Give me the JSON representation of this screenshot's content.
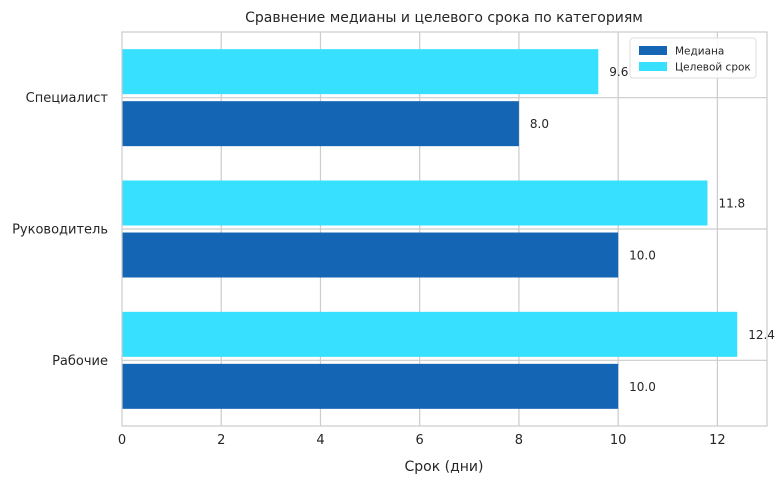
{
  "chart_data": {
    "type": "bar",
    "orientation": "horizontal",
    "title": "Сравнение медианы и целевого срока по категориям",
    "xlabel": "Срок (дни)",
    "ylabel": "",
    "xlim": [
      0,
      13
    ],
    "xticks": [
      "0",
      "2",
      "4",
      "6",
      "8",
      "10",
      "12"
    ],
    "categories": [
      "Рабочие",
      "Руководитель",
      "Специалист"
    ],
    "series": [
      {
        "name": "Медиана",
        "color": "#1565b5",
        "values": [
          10.0,
          10.0,
          8.0
        ],
        "labels": [
          "10.0",
          "10.0",
          "8.0"
        ]
      },
      {
        "name": "Целевой срок",
        "color": "#36e0fe",
        "values": [
          12.4,
          11.8,
          9.6
        ],
        "labels": [
          "12.4",
          "11.8",
          "9.6"
        ]
      }
    ],
    "grid": true,
    "legend_position": "top-right"
  }
}
